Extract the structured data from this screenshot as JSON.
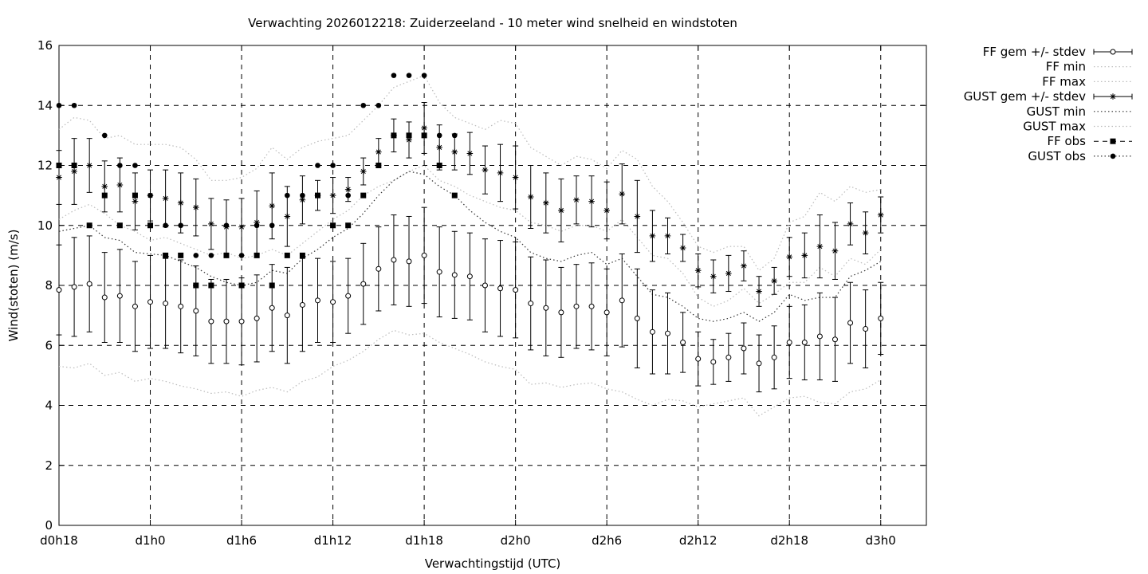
{
  "chart_data": {
    "type": "line",
    "title": "Verwachting 2026012218: Zuiderzeeland - 10 meter wind snelheid en windstoten",
    "xlabel": "Verwachtingstijd (UTC)",
    "ylabel": "Wind(stoten) (m/s)",
    "xlim": [
      18,
      75
    ],
    "ylim": [
      0,
      16
    ],
    "x_unit": "hours since d0h0",
    "xticks": [
      {
        "x": 18,
        "label": "d0h18"
      },
      {
        "x": 24,
        "label": "d1h0"
      },
      {
        "x": 30,
        "label": "d1h6"
      },
      {
        "x": 36,
        "label": "d1h12"
      },
      {
        "x": 42,
        "label": "d1h18"
      },
      {
        "x": 48,
        "label": "d2h0"
      },
      {
        "x": 54,
        "label": "d2h6"
      },
      {
        "x": 60,
        "label": "d2h12"
      },
      {
        "x": 66,
        "label": "d2h18"
      },
      {
        "x": 72,
        "label": "d3h0"
      }
    ],
    "yticks": [
      0,
      2,
      4,
      6,
      8,
      10,
      12,
      14,
      16
    ],
    "grid": true,
    "legend_position": "outside-top-right",
    "legend": [
      "FF gem +/- stdev",
      "FF min",
      "FF max",
      "GUST gem +/- stdev",
      "GUST min",
      "GUST max",
      "FF obs",
      "GUST obs"
    ],
    "x": [
      18,
      19,
      20,
      21,
      22,
      23,
      24,
      25,
      26,
      27,
      28,
      29,
      30,
      31,
      32,
      33,
      34,
      35,
      36,
      37,
      38,
      39,
      40,
      41,
      42,
      43,
      44,
      45,
      46,
      47,
      48,
      49,
      50,
      51,
      52,
      53,
      54,
      55,
      56,
      57,
      58,
      59,
      60,
      61,
      62,
      63,
      64,
      65,
      66,
      67,
      68,
      69,
      70,
      71,
      72
    ],
    "series": [
      {
        "name": "FF gem +/- stdev",
        "mean": [
          7.85,
          7.95,
          8.05,
          7.6,
          7.65,
          7.3,
          7.45,
          7.4,
          7.3,
          7.15,
          6.8,
          6.8,
          6.8,
          6.9,
          7.25,
          7.0,
          7.35,
          7.5,
          7.45,
          7.65,
          8.05,
          8.55,
          8.85,
          8.8,
          9.0,
          8.45,
          8.35,
          8.3,
          8.0,
          7.9,
          7.85,
          7.4,
          7.25,
          7.1,
          7.3,
          7.3,
          7.1,
          7.5,
          6.9,
          6.45,
          6.4,
          6.1,
          5.55,
          5.45,
          5.6,
          5.9,
          5.4,
          5.6,
          6.1,
          6.1,
          6.3,
          6.2,
          6.75,
          6.55,
          6.9
        ],
        "stdev": [
          1.5,
          1.65,
          1.6,
          1.5,
          1.55,
          1.5,
          1.55,
          1.5,
          1.55,
          1.5,
          1.4,
          1.4,
          1.45,
          1.45,
          1.45,
          1.6,
          1.55,
          1.4,
          1.35,
          1.25,
          1.35,
          1.4,
          1.5,
          1.5,
          1.6,
          1.5,
          1.45,
          1.45,
          1.55,
          1.6,
          1.6,
          1.55,
          1.6,
          1.5,
          1.4,
          1.45,
          1.45,
          1.55,
          1.65,
          1.4,
          1.35,
          1.0,
          0.9,
          0.75,
          0.8,
          0.85,
          0.95,
          1.05,
          1.2,
          1.25,
          1.45,
          1.4,
          1.35,
          1.3,
          1.2
        ]
      },
      {
        "name": "FF min",
        "values": [
          5.3,
          5.25,
          5.4,
          5.0,
          5.1,
          4.8,
          4.9,
          4.8,
          4.65,
          4.55,
          4.4,
          4.45,
          4.3,
          4.5,
          4.6,
          4.45,
          4.8,
          4.95,
          5.3,
          5.5,
          5.8,
          6.2,
          6.5,
          6.35,
          6.4,
          6.1,
          5.9,
          5.7,
          5.45,
          5.3,
          5.2,
          4.7,
          4.75,
          4.6,
          4.7,
          4.75,
          4.55,
          4.45,
          4.2,
          4.0,
          4.2,
          4.15,
          3.95,
          4.05,
          4.15,
          4.25,
          3.65,
          3.95,
          4.25,
          4.3,
          4.1,
          4.05,
          4.45,
          4.55,
          4.85
        ]
      },
      {
        "name": "FF max",
        "values": [
          10.2,
          10.5,
          10.7,
          10.4,
          10.0,
          9.8,
          9.5,
          9.6,
          9.4,
          9.2,
          9.0,
          9.1,
          8.9,
          9.0,
          9.2,
          9.0,
          9.4,
          9.8,
          10.2,
          10.5,
          11.0,
          11.3,
          11.5,
          11.8,
          12.0,
          11.5,
          11.3,
          11.0,
          10.8,
          10.6,
          10.5,
          10.1,
          10.0,
          9.8,
          10.0,
          10.0,
          9.8,
          10.2,
          9.6,
          9.0,
          8.9,
          8.4,
          7.6,
          7.3,
          7.5,
          7.9,
          7.4,
          7.7,
          8.1,
          8.1,
          8.6,
          8.3,
          8.9,
          8.7,
          9.2
        ]
      },
      {
        "name": "GUST gem +/- stdev",
        "mean": [
          11.6,
          11.8,
          12.0,
          11.3,
          11.35,
          10.8,
          11.0,
          10.9,
          10.75,
          10.6,
          10.05,
          9.95,
          9.95,
          10.1,
          10.65,
          10.3,
          10.85,
          11.0,
          11.0,
          11.2,
          11.8,
          12.45,
          13.0,
          12.85,
          13.25,
          12.6,
          12.45,
          12.4,
          11.85,
          11.75,
          11.6,
          10.95,
          10.75,
          10.5,
          10.85,
          10.8,
          10.5,
          11.05,
          10.3,
          9.65,
          9.65,
          9.25,
          8.5,
          8.3,
          8.4,
          8.65,
          7.8,
          8.15,
          8.95,
          9.0,
          9.3,
          9.15,
          10.05,
          9.75,
          10.35
        ],
        "stdev": [
          0.9,
          1.1,
          0.9,
          0.85,
          0.9,
          0.95,
          0.85,
          0.95,
          1.0,
          0.95,
          0.85,
          0.9,
          0.95,
          1.05,
          1.1,
          1.0,
          0.8,
          0.5,
          0.6,
          0.4,
          0.45,
          0.45,
          0.55,
          0.6,
          0.85,
          0.75,
          0.6,
          0.7,
          0.8,
          0.95,
          1.05,
          1.05,
          1.0,
          1.05,
          0.8,
          0.85,
          0.95,
          1.0,
          1.2,
          0.85,
          0.6,
          0.45,
          0.55,
          0.55,
          0.6,
          0.5,
          0.5,
          0.45,
          0.65,
          0.75,
          1.05,
          0.95,
          0.7,
          0.7,
          0.6
        ]
      },
      {
        "name": "GUST min",
        "values": [
          9.8,
          9.9,
          10.0,
          9.6,
          9.5,
          9.1,
          9.05,
          9.0,
          8.8,
          8.6,
          8.3,
          8.1,
          8.0,
          8.1,
          8.5,
          8.4,
          8.9,
          9.2,
          9.6,
          9.9,
          10.4,
          11.0,
          11.5,
          11.8,
          11.7,
          11.3,
          11.0,
          10.5,
          10.1,
          9.8,
          9.6,
          9.1,
          8.9,
          8.8,
          9.0,
          9.1,
          8.7,
          8.9,
          8.3,
          7.7,
          7.6,
          7.3,
          6.9,
          6.8,
          6.9,
          7.1,
          6.8,
          7.1,
          7.7,
          7.5,
          7.6,
          7.6,
          8.3,
          8.5,
          8.8
        ]
      },
      {
        "name": "GUST max",
        "values": [
          13.2,
          13.6,
          13.5,
          12.9,
          13.0,
          12.7,
          12.7,
          12.7,
          12.6,
          12.2,
          11.5,
          11.5,
          11.6,
          11.9,
          12.6,
          12.2,
          12.6,
          12.8,
          12.9,
          13.0,
          13.5,
          14.0,
          14.6,
          14.8,
          15.0,
          14.1,
          13.6,
          13.4,
          13.2,
          13.5,
          13.4,
          12.6,
          12.3,
          12.0,
          12.3,
          12.2,
          11.9,
          12.5,
          12.2,
          11.3,
          10.8,
          10.1,
          9.3,
          9.1,
          9.3,
          9.3,
          8.5,
          8.9,
          10.1,
          10.3,
          11.1,
          10.8,
          11.3,
          11.1,
          11.2
        ]
      },
      {
        "name": "FF obs",
        "x": [
          18,
          19,
          20,
          21,
          22,
          23,
          24,
          25,
          26,
          27,
          28,
          29,
          30,
          31,
          32,
          33,
          34,
          35,
          36,
          37,
          38,
          39,
          40,
          41,
          42,
          43,
          44
        ],
        "values": [
          12,
          12,
          10,
          11,
          10,
          11,
          10,
          9,
          9,
          8,
          8,
          9,
          8,
          9,
          8,
          9,
          9,
          11,
          10,
          10,
          11,
          12,
          13,
          13,
          13,
          12,
          11
        ]
      },
      {
        "name": "GUST obs",
        "x": [
          18,
          19,
          21,
          22,
          23,
          24,
          25,
          26,
          27,
          28,
          29,
          30,
          31,
          32,
          33,
          34,
          35,
          36,
          37,
          38,
          39,
          40,
          41,
          42,
          43,
          44
        ],
        "values": [
          14,
          14,
          13,
          12,
          12,
          11,
          10,
          10,
          9,
          9,
          10,
          9,
          10,
          10,
          11,
          11,
          12,
          12,
          11,
          14,
          14,
          15,
          15,
          15,
          13,
          13
        ]
      }
    ]
  }
}
